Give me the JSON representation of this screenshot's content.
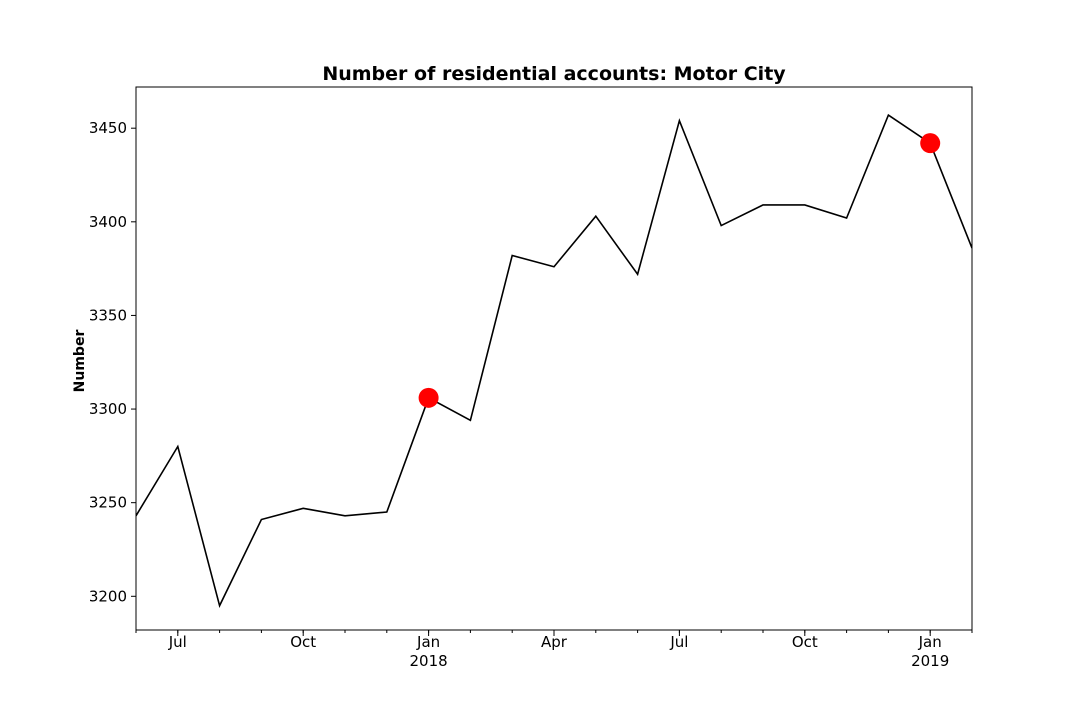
{
  "chart_data": {
    "type": "line",
    "title": "Number of residential accounts: Motor City",
    "xlabel": "",
    "ylabel": "Number",
    "ylim": [
      3182,
      3472
    ],
    "xlim": [
      "2017-06",
      "2019-02"
    ],
    "x": [
      "2017-06",
      "2017-07",
      "2017-08",
      "2017-09",
      "2017-10",
      "2017-11",
      "2017-12",
      "2018-01",
      "2018-02",
      "2018-03",
      "2018-04",
      "2018-05",
      "2018-06",
      "2018-07",
      "2018-08",
      "2018-09",
      "2018-10",
      "2018-11",
      "2018-12",
      "2019-01",
      "2019-02"
    ],
    "series": [
      {
        "values": [
          3243,
          3280,
          3195,
          3241,
          3247,
          3243,
          3245,
          3306,
          3294,
          3382,
          3376,
          3403,
          3372,
          3454,
          3398,
          3409,
          3409,
          3402,
          3457,
          3442,
          3386
        ],
        "color": "#000000"
      }
    ],
    "highlighted_points": [
      {
        "x": "2018-01",
        "y": 3306,
        "color": "#ff0000"
      },
      {
        "x": "2019-01",
        "y": 3442,
        "color": "#ff0000"
      }
    ],
    "yticks": [
      3200,
      3250,
      3300,
      3350,
      3400,
      3450
    ],
    "xticks": [
      {
        "x": "2017-07",
        "label": "Jul",
        "sublabel": ""
      },
      {
        "x": "2017-10",
        "label": "Oct",
        "sublabel": ""
      },
      {
        "x": "2018-01",
        "label": "Jan",
        "sublabel": "2018"
      },
      {
        "x": "2018-04",
        "label": "Apr",
        "sublabel": ""
      },
      {
        "x": "2018-07",
        "label": "Jul",
        "sublabel": ""
      },
      {
        "x": "2018-10",
        "label": "Oct",
        "sublabel": ""
      },
      {
        "x": "2019-01",
        "label": "Jan",
        "sublabel": "2019"
      }
    ],
    "grid": false,
    "legend": "none"
  }
}
